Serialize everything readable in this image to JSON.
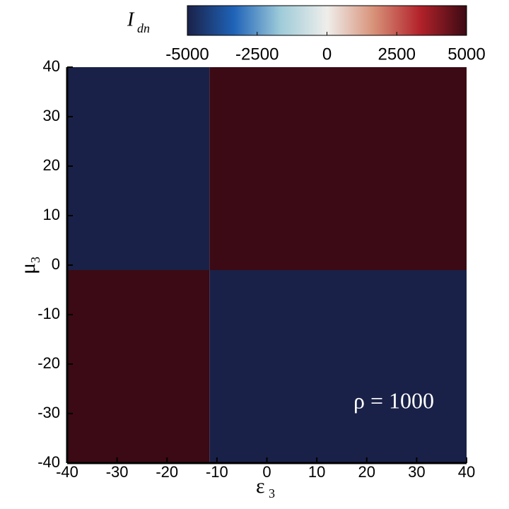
{
  "chart_data": {
    "type": "heatmap",
    "colorbar_label": "I",
    "colorbar_label_sub": "dn",
    "xlabel": "ε",
    "xlabel_sub": "3",
    "ylabel": "μ",
    "ylabel_sub": "3",
    "annotation": "ρ = 1000",
    "x": [
      -40,
      -11.5,
      40
    ],
    "y": [
      -40,
      -1,
      40
    ],
    "values": [
      [
        5000,
        -5000
      ],
      [
        -5000,
        5000
      ]
    ],
    "xlim": [
      -40,
      40
    ],
    "ylim": [
      -40,
      40
    ],
    "xticks": [
      -40,
      -30,
      -20,
      -10,
      0,
      10,
      20,
      30,
      40
    ],
    "yticks": [
      -40,
      -30,
      -20,
      -10,
      0,
      10,
      20,
      30,
      40
    ],
    "clim": [
      -5000,
      5000
    ],
    "cticks": [
      -5000,
      -2500,
      0,
      2500,
      5000
    ],
    "colormap": [
      "#3b0a14",
      "#b2222a",
      "#d8927a",
      "#efeeeb",
      "#9ecbd9",
      "#1f63b8",
      "#1a2148"
    ]
  }
}
